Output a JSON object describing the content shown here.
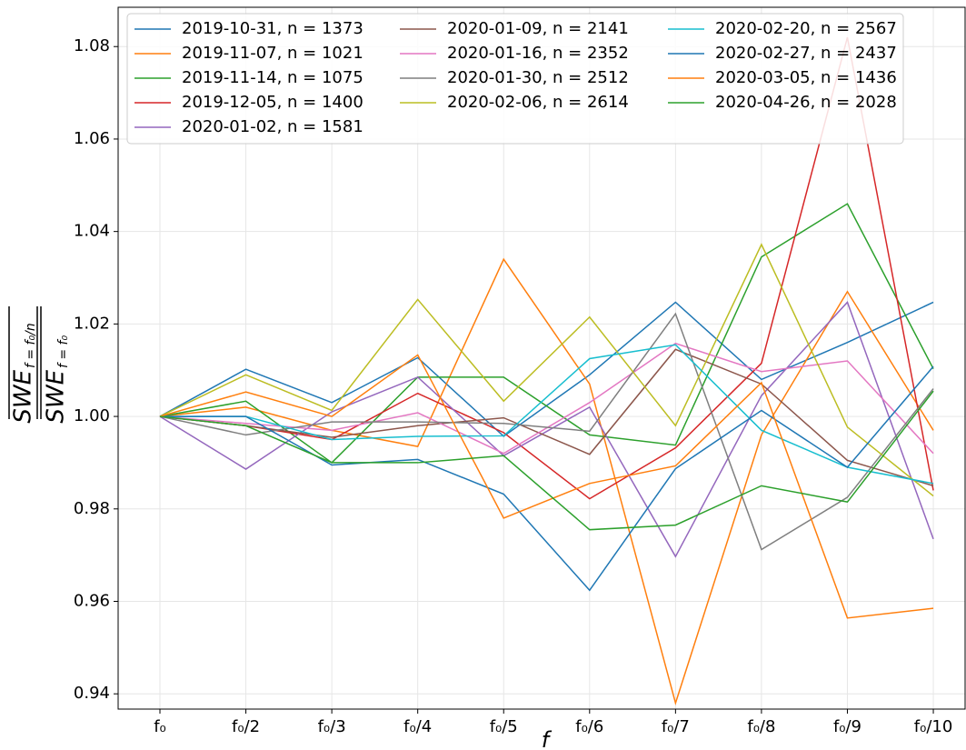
{
  "chart_data": {
    "type": "line",
    "xlabel": "f",
    "ylabel": {
      "numerator": "SWE",
      "numerator_sub": "f = f₀/n",
      "denominator": "SWE",
      "denominator_sub": "f = f₀"
    },
    "categories": [
      "f₀",
      "f₀/2",
      "f₀/3",
      "f₀/4",
      "f₀/5",
      "f₀/6",
      "f₀/7",
      "f₀/8",
      "f₀/9",
      "f₀/10"
    ],
    "ylim": [
      0.9367,
      1.0885
    ],
    "yticks": [
      {
        "value": 0.94,
        "label": "0.94"
      },
      {
        "value": 0.96,
        "label": "0.96"
      },
      {
        "value": 0.98,
        "label": "0.98"
      },
      {
        "value": 1.0,
        "label": "1.00"
      },
      {
        "value": 1.02,
        "label": "1.02"
      },
      {
        "value": 1.04,
        "label": "1.04"
      },
      {
        "value": 1.06,
        "label": "1.06"
      },
      {
        "value": 1.08,
        "label": "1.08"
      }
    ],
    "grid": true,
    "legend": "upper-left",
    "series": [
      {
        "name": "2019-10-31, n = 1373",
        "color": "#1f77b4",
        "values": [
          1.0,
          1.0102,
          1.003,
          1.0127,
          0.9957,
          1.009,
          1.0247,
          1.008,
          1.016,
          1.0247
        ]
      },
      {
        "name": "2019-11-07, n = 1021",
        "color": "#ff7f0e",
        "values": [
          1.0,
          1.002,
          0.997,
          0.9935,
          1.034,
          1.007,
          0.938,
          0.996,
          1.027,
          0.997
        ]
      },
      {
        "name": "2019-11-14, n = 1075",
        "color": "#2ca02c",
        "values": [
          1.0,
          1.0033,
          0.99,
          1.0085,
          1.0085,
          0.996,
          0.9938,
          1.0345,
          1.046,
          1.0103
        ]
      },
      {
        "name": "2019-12-05, n = 1400",
        "color": "#d62728",
        "values": [
          1.0,
          0.998,
          0.995,
          1.005,
          0.9965,
          0.9822,
          0.9932,
          1.0115,
          1.082,
          0.984
        ]
      },
      {
        "name": "2020-01-02, n = 1581",
        "color": "#9467bd",
        "values": [
          1.0,
          0.9886,
          1.001,
          1.0085,
          0.9915,
          1.002,
          0.9697,
          1.0045,
          1.0247,
          0.9735
        ]
      },
      {
        "name": "2020-01-09, n = 2141",
        "color": "#8c564b",
        "values": [
          1.0,
          0.998,
          0.9955,
          0.998,
          0.9997,
          0.9918,
          1.0145,
          1.007,
          0.9905,
          0.985
        ]
      },
      {
        "name": "2020-01-16, n = 2352",
        "color": "#e377c2",
        "values": [
          1.0,
          0.9985,
          0.997,
          1.0008,
          0.992,
          1.003,
          1.0158,
          1.0097,
          1.012,
          0.992
        ]
      },
      {
        "name": "2020-01-30, n = 2512",
        "color": "#7f7f7f",
        "values": [
          1.0,
          0.996,
          0.9988,
          0.9988,
          0.9985,
          0.9968,
          1.0222,
          0.9712,
          0.9825,
          1.006
        ]
      },
      {
        "name": "2020-02-06, n = 2614",
        "color": "#bcbd22",
        "values": [
          1.0,
          1.009,
          1.0013,
          1.0253,
          1.0033,
          1.0215,
          0.998,
          1.0372,
          0.9977,
          0.9828
        ]
      },
      {
        "name": "2020-02-20, n = 2567",
        "color": "#17becf",
        "values": [
          1.0,
          1.0,
          0.995,
          0.9957,
          0.9958,
          1.0125,
          1.0155,
          0.997,
          0.989,
          0.9855
        ]
      },
      {
        "name": "2020-02-27, n = 2437",
        "color": "#1f77b4",
        "values": [
          1.0,
          1.0,
          0.9895,
          0.9907,
          0.9832,
          0.9624,
          0.9887,
          1.0013,
          0.989,
          1.0108
        ]
      },
      {
        "name": "2020-03-05, n = 1436",
        "color": "#ff7f0e",
        "values": [
          1.0,
          1.0053,
          1.0,
          1.0133,
          0.978,
          0.9855,
          0.9893,
          1.0073,
          0.9564,
          0.9585
        ]
      },
      {
        "name": "2020-04-26, n = 2028",
        "color": "#2ca02c",
        "values": [
          1.0,
          0.998,
          0.99,
          0.99,
          0.9915,
          0.9755,
          0.9765,
          0.985,
          0.9815,
          1.0055
        ]
      }
    ]
  }
}
